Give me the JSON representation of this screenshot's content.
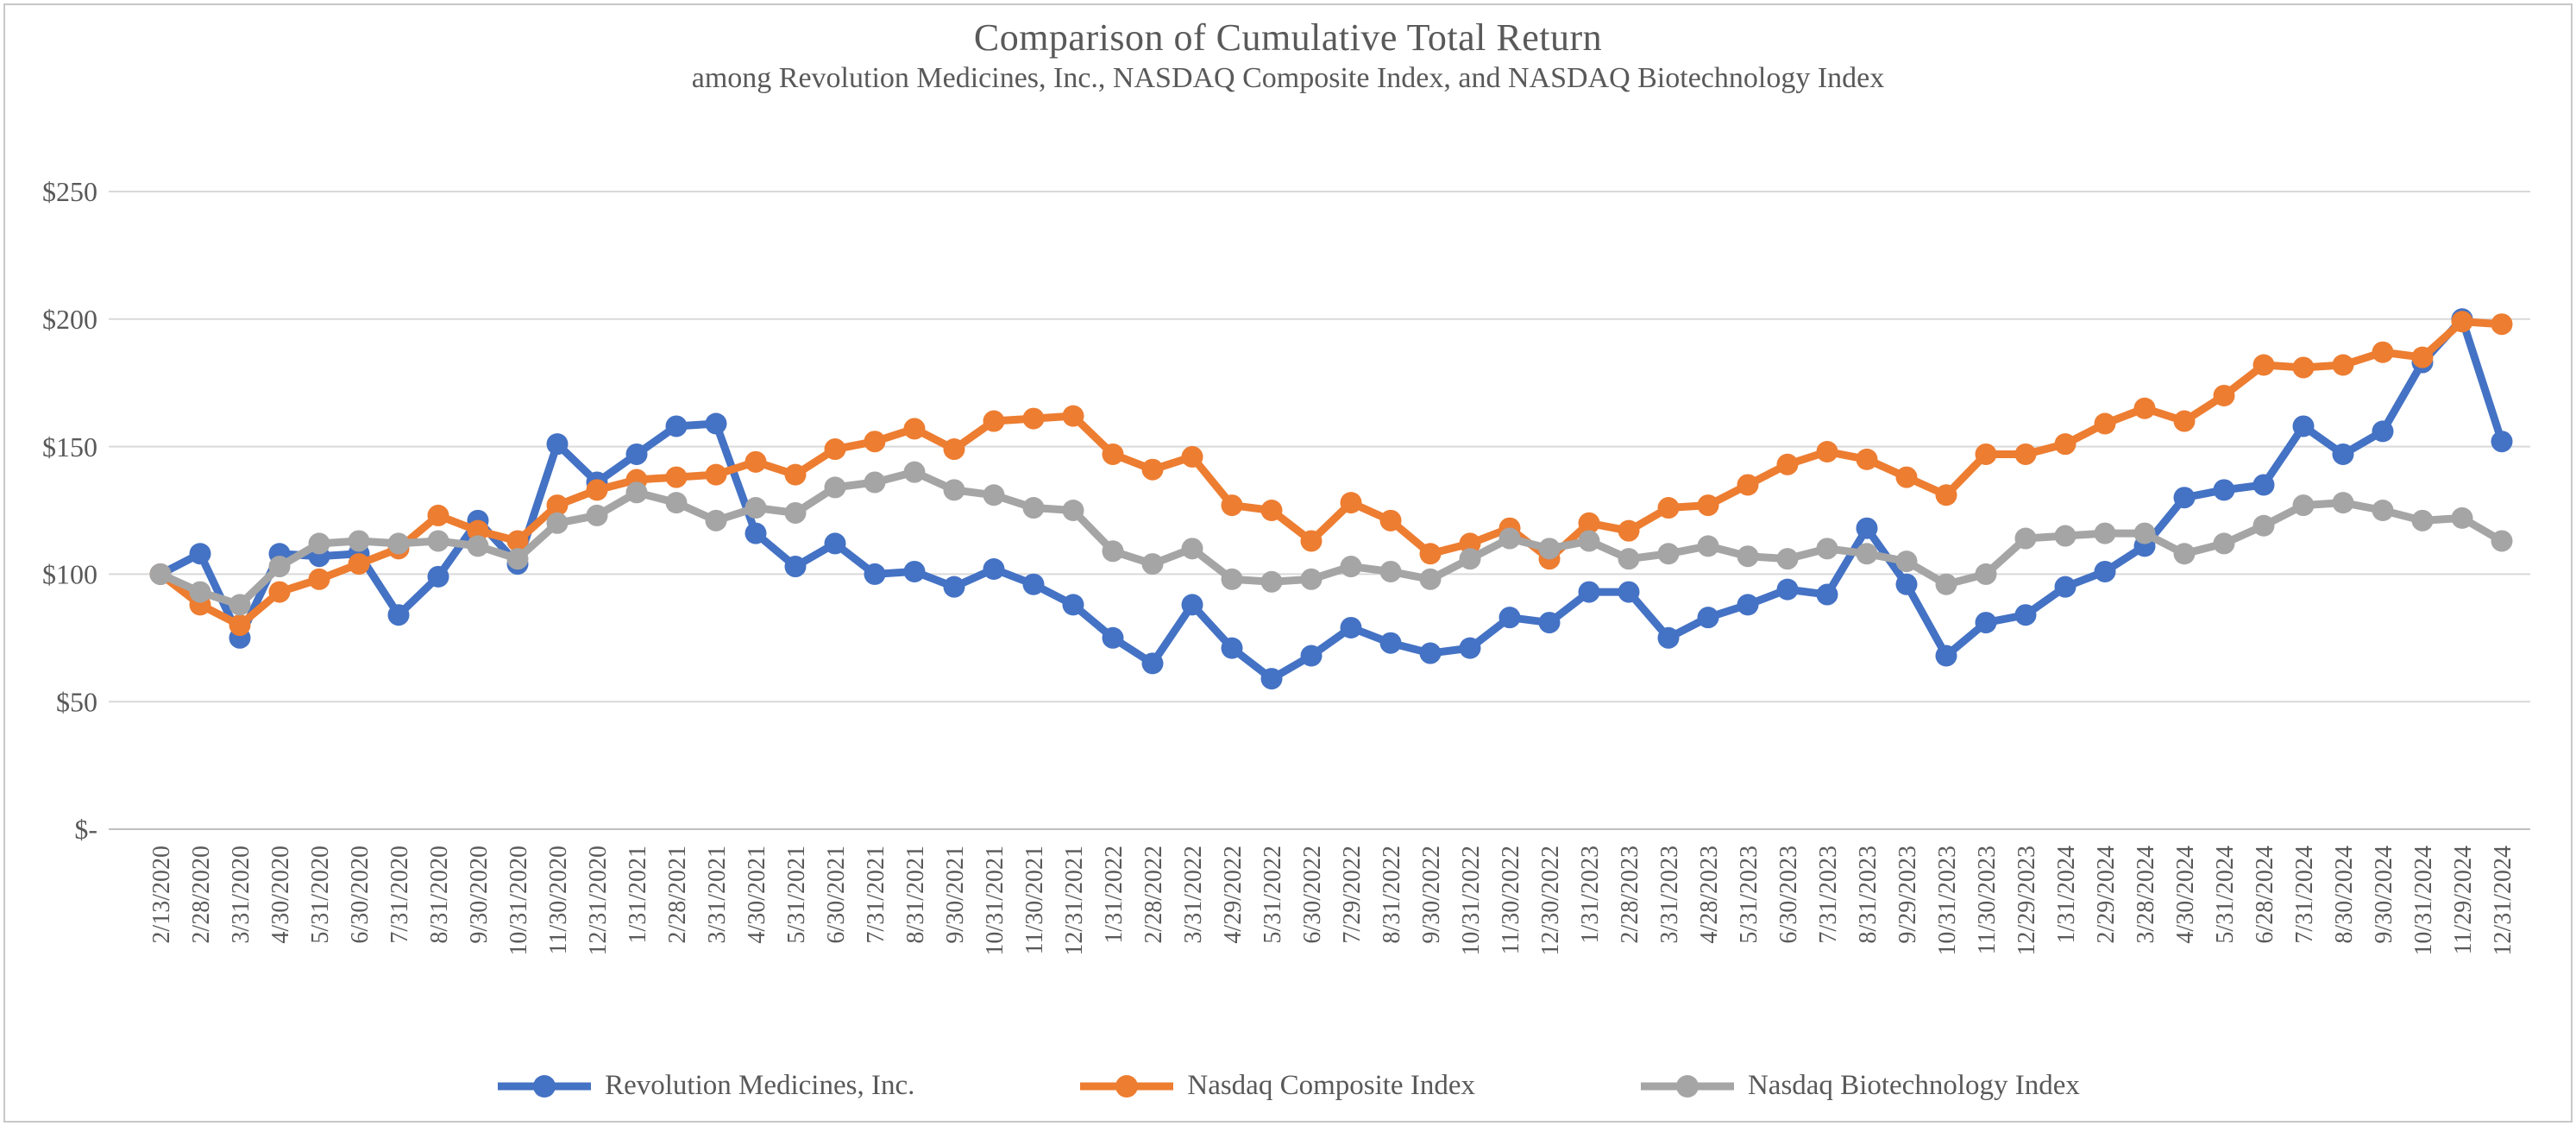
{
  "chart_data": {
    "type": "line",
    "title": "Comparison of Cumulative Total Return",
    "subtitle": "among Revolution Medicines, Inc., NASDAQ Composite Index, and NASDAQ Biotechnology Index",
    "xlabel": "",
    "ylabel": "",
    "ylim": [
      0,
      250
    ],
    "y_tick_values": [
      0,
      50,
      100,
      150,
      200,
      250
    ],
    "y_tick_labels": [
      "$-",
      "$50",
      "$100",
      "$150",
      "$200",
      "$250"
    ],
    "grid": "horizontal",
    "legend_position": "bottom",
    "marker": "circle",
    "x": [
      "2/13/2020",
      "2/28/2020",
      "3/31/2020",
      "4/30/2020",
      "5/31/2020",
      "6/30/2020",
      "7/31/2020",
      "8/31/2020",
      "9/30/2020",
      "10/31/2020",
      "11/30/2020",
      "12/31/2020",
      "1/31/2021",
      "2/28/2021",
      "3/31/2021",
      "4/30/2021",
      "5/31/2021",
      "6/30/2021",
      "7/31/2021",
      "8/31/2021",
      "9/30/2021",
      "10/31/2021",
      "11/30/2021",
      "12/31/2021",
      "1/31/2022",
      "2/28/2022",
      "3/31/2022",
      "4/29/2022",
      "5/31/2022",
      "6/30/2022",
      "7/29/2022",
      "8/31/2022",
      "9/30/2022",
      "10/31/2022",
      "11/30/2022",
      "12/30/2022",
      "1/31/2023",
      "2/28/2023",
      "3/31/2023",
      "4/28/2023",
      "5/31/2023",
      "6/30/2023",
      "7/31/2023",
      "8/31/2023",
      "9/29/2023",
      "10/31/2023",
      "11/30/2023",
      "12/29/2023",
      "1/31/2024",
      "2/29/2024",
      "3/28/2024",
      "4/30/2024",
      "5/31/2024",
      "6/28/2024",
      "7/31/2024",
      "8/30/2024",
      "9/30/2024",
      "10/31/2024",
      "11/29/2024",
      "12/31/2024"
    ],
    "series": [
      {
        "name": "Revolution Medicines, Inc.",
        "color": "#4472C4",
        "values": [
          100,
          108,
          75,
          108,
          107,
          108,
          84,
          99,
          121,
          104,
          151,
          136,
          147,
          158,
          159,
          116,
          103,
          112,
          100,
          101,
          95,
          102,
          96,
          88,
          75,
          65,
          88,
          71,
          59,
          68,
          79,
          73,
          69,
          71,
          83,
          81,
          93,
          93,
          75,
          83,
          88,
          94,
          92,
          118,
          96,
          68,
          81,
          84,
          95,
          101,
          111,
          130,
          133,
          135,
          158,
          147,
          156,
          183,
          200,
          152
        ]
      },
      {
        "name": "Nasdaq Composite Index",
        "color": "#ED7D31",
        "values": [
          100,
          88,
          80,
          93,
          98,
          104,
          110,
          123,
          117,
          113,
          127,
          133,
          137,
          138,
          139,
          144,
          139,
          149,
          152,
          157,
          149,
          160,
          161,
          162,
          147,
          141,
          146,
          127,
          125,
          113,
          128,
          121,
          108,
          112,
          118,
          106,
          120,
          117,
          126,
          127,
          135,
          143,
          148,
          145,
          138,
          131,
          147,
          147,
          151,
          159,
          165,
          160,
          170,
          182,
          181,
          182,
          187,
          185,
          199,
          198
        ]
      },
      {
        "name": "Nasdaq Biotechnology Index",
        "color": "#A5A5A5",
        "values": [
          100,
          93,
          88,
          103,
          112,
          113,
          112,
          113,
          111,
          106,
          120,
          123,
          132,
          128,
          121,
          126,
          124,
          134,
          136,
          140,
          133,
          131,
          126,
          125,
          109,
          104,
          110,
          98,
          97,
          98,
          103,
          101,
          98,
          106,
          114,
          110,
          113,
          106,
          108,
          111,
          107,
          106,
          110,
          108,
          105,
          96,
          100,
          114,
          115,
          116,
          116,
          108,
          112,
          119,
          127,
          128,
          125,
          121,
          122,
          113
        ]
      }
    ],
    "colors": {
      "text": "#595959",
      "gridline": "#D9D9D9",
      "axis_line": "#BFBFBF",
      "frame_border": "#C8C8C8"
    }
  }
}
